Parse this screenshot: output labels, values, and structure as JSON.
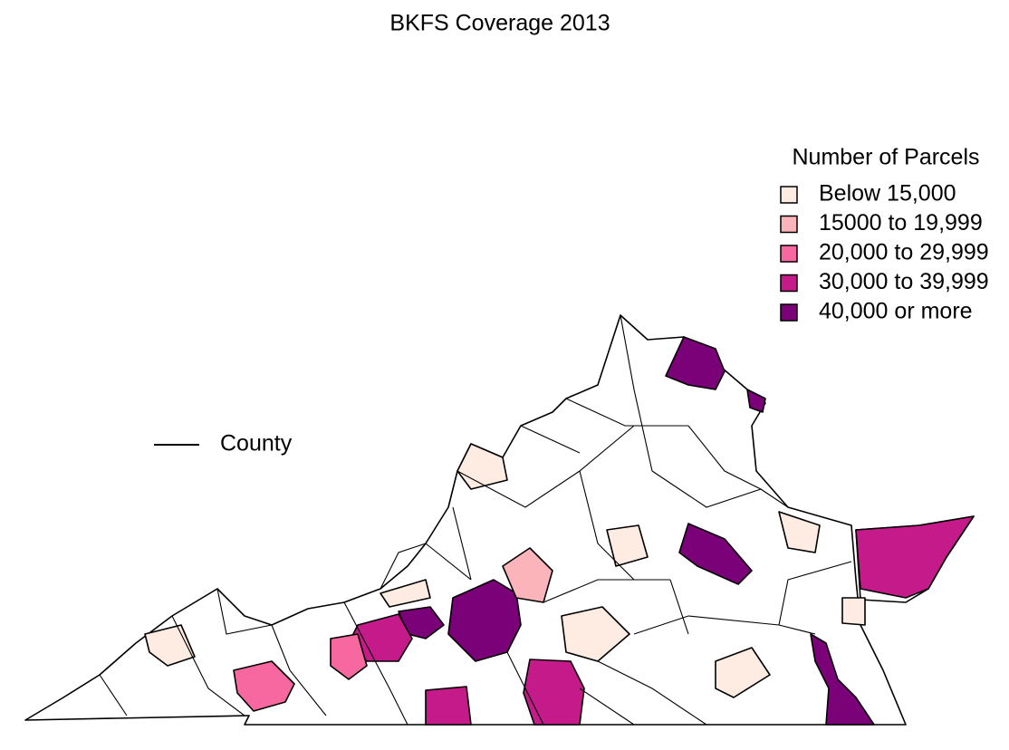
{
  "title": "BKFS Coverage 2013",
  "legend": {
    "title": "Number of Parcels",
    "items": [
      {
        "label": "Below 15,000",
        "color": "#feebe2"
      },
      {
        "label": "15000 to 19,999",
        "color": "#fbb4b9"
      },
      {
        "label": "20,000 to 29,999",
        "color": "#f768a1"
      },
      {
        "label": "30,000 to 39,999",
        "color": "#c51b8a"
      },
      {
        "label": "40,000 or more",
        "color": "#7a0177"
      }
    ]
  },
  "line_legend": {
    "label": "County"
  }
}
